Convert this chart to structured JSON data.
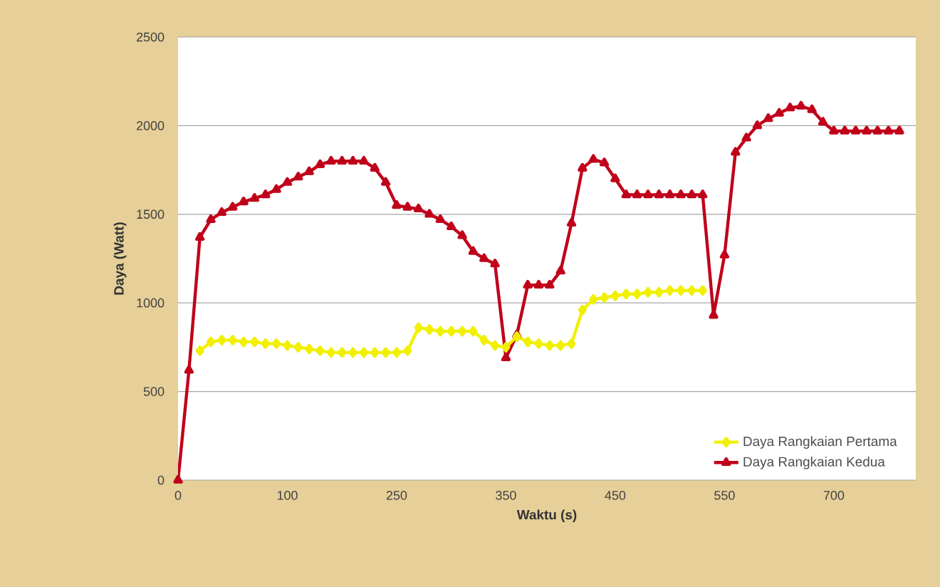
{
  "chart_data": {
    "type": "line",
    "xlabel": "Waktu (s)",
    "ylabel": "Daya (Watt)",
    "categories": [
      "0",
      null,
      null,
      null,
      null,
      null,
      null,
      null,
      null,
      null,
      "100",
      null,
      null,
      null,
      null,
      null,
      null,
      null,
      null,
      null,
      "250",
      null,
      null,
      null,
      null,
      null,
      null,
      null,
      null,
      null,
      "350",
      null,
      null,
      null,
      null,
      null,
      null,
      null,
      null,
      null,
      "450",
      null,
      null,
      null,
      null,
      null,
      null,
      null,
      null,
      null,
      "550",
      null,
      null,
      null,
      null,
      null,
      null,
      null,
      null,
      null,
      "700",
      null,
      null,
      null,
      null,
      null,
      null
    ],
    "series": [
      {
        "name": "Daya Rangkaian Pertama",
        "color": "#f0f000",
        "marker": "diamond",
        "values": [
          null,
          null,
          730,
          780,
          790,
          790,
          780,
          780,
          770,
          770,
          760,
          750,
          740,
          730,
          720,
          720,
          720,
          720,
          720,
          720,
          720,
          730,
          860,
          850,
          840,
          840,
          840,
          840,
          790,
          760,
          750,
          810,
          780,
          770,
          760,
          760,
          770,
          960,
          1020,
          1030,
          1040,
          1050,
          1050,
          1060,
          1060,
          1070,
          1070,
          1070,
          1070,
          null,
          null,
          null,
          null,
          null,
          null,
          null,
          null,
          null,
          null,
          null,
          null,
          null,
          null,
          null,
          null,
          null,
          null
        ]
      },
      {
        "name": "Daya Rangkaian Kedua",
        "color": "#c0001a",
        "marker": "triangle",
        "values": [
          0,
          620,
          1370,
          1470,
          1510,
          1540,
          1570,
          1590,
          1610,
          1640,
          1680,
          1710,
          1740,
          1780,
          1800,
          1800,
          1800,
          1800,
          1760,
          1680,
          1550,
          1540,
          1530,
          1500,
          1470,
          1430,
          1380,
          1290,
          1250,
          1220,
          690,
          820,
          1100,
          1100,
          1100,
          1180,
          1450,
          1760,
          1810,
          1790,
          1700,
          1610,
          1610,
          1610,
          1610,
          1610,
          1610,
          1610,
          1610,
          930,
          1270,
          1850,
          1930,
          2000,
          2040,
          2070,
          2100,
          2110,
          2090,
          2020,
          1970,
          1970,
          1970,
          1970,
          1970,
          1970,
          1970
        ]
      }
    ],
    "ylim": [
      0,
      2500
    ],
    "yticks": [
      0,
      500,
      1000,
      1500,
      2000,
      2500
    ],
    "grid": "y",
    "legend": "bottom right"
  }
}
